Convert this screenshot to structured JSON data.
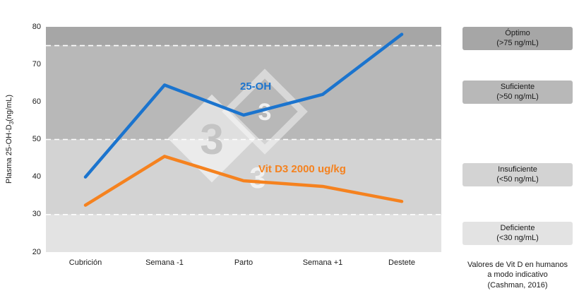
{
  "chart_data": {
    "type": "line",
    "title": "",
    "xlabel": "",
    "ylabel": "Plasma 25-OH-D3 (ng/mL)",
    "ylabel_parts": {
      "pre": "Plasma 25-OH-D",
      "sub": "3",
      "post": "(ng/mL)"
    },
    "ylim": [
      20,
      80
    ],
    "yticks": [
      20,
      30,
      40,
      50,
      60,
      70,
      80
    ],
    "categories": [
      "Cubrición",
      "Semana -1",
      "Parto",
      "Semana +1",
      "Destete"
    ],
    "series": [
      {
        "name": "25-OH",
        "color": "#1B74CE",
        "values": [
          40,
          64.5,
          56.5,
          62,
          78
        ]
      },
      {
        "name": "Vit D3 2000 ug/kg",
        "color": "#F5821F",
        "values": [
          32.5,
          45.5,
          39,
          37.5,
          33.5
        ]
      }
    ],
    "bands": [
      {
        "label": "Óptimo",
        "from": 75,
        "to": 80,
        "color": "#A6A6A6"
      },
      {
        "label": "Suficiente",
        "from": 50,
        "to": 75,
        "color": "#B8B8B8"
      },
      {
        "label": "Insuficiente",
        "from": 30,
        "to": 50,
        "color": "#D3D3D3"
      },
      {
        "label": "Deficiente",
        "from": 20,
        "to": 30,
        "color": "#E3E3E3"
      }
    ],
    "dashed_lines": [
      75,
      50,
      30
    ],
    "grid": false,
    "legend_position": "right"
  },
  "annotations": {
    "blue_label": "25-OH",
    "orange_label": "Vit D3 2000 ug/kg"
  },
  "legend": {
    "items": [
      {
        "label": "Óptimo",
        "sublabel": "(>75 ng/mL)",
        "color": "#A6A6A6"
      },
      {
        "label": "Suficiente",
        "sublabel": "(>50 ng/mL)",
        "color": "#B8B8B8"
      },
      {
        "label": "Insuficiente",
        "sublabel": "(<50 ng/mL)",
        "color": "#D3D3D3"
      },
      {
        "label": "Deficiente",
        "sublabel": "(<30 ng/mL)",
        "color": "#E3E3E3"
      }
    ]
  },
  "caption": {
    "line1": "Valores de Vit D en humanos",
    "line2": "a modo indicativo",
    "line3": "(Cashman, 2016)"
  },
  "watermark": {
    "text": "3"
  }
}
